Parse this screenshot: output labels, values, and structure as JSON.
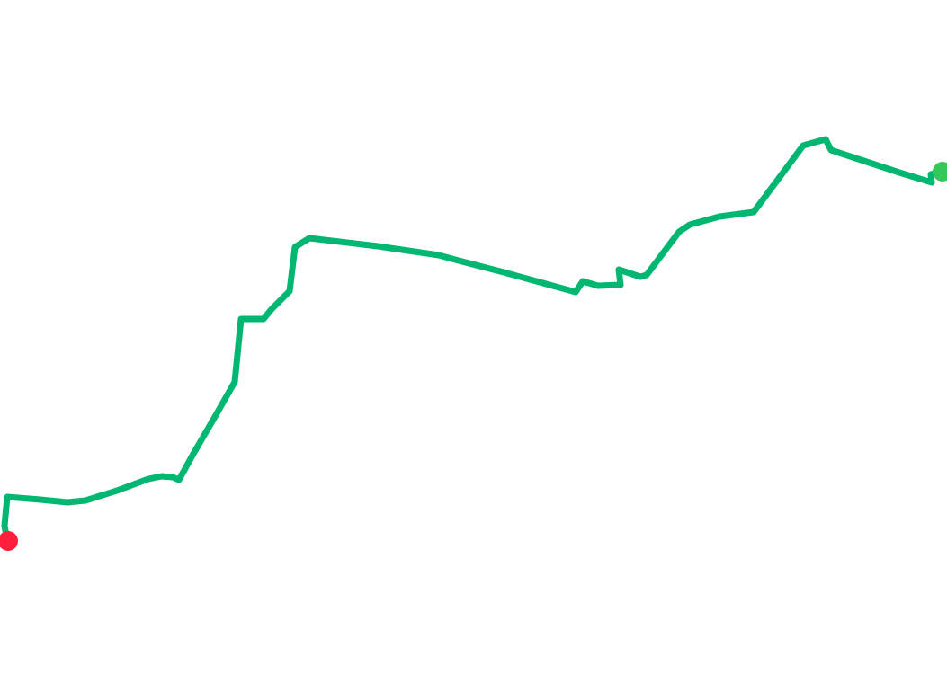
{
  "route": {
    "line_color": "#00b772",
    "start_marker_color": "#ff1f3d",
    "end_marker_color": "#34c759"
  }
}
